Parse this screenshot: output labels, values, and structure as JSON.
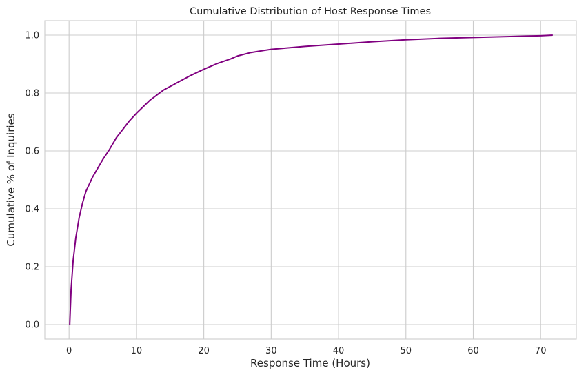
{
  "chart_data": {
    "type": "line",
    "title": "Cumulative Distribution of Host Response Times",
    "xlabel": "Response Time (Hours)",
    "ylabel": "Cumulative % of Inquiries",
    "xlim": [
      -3.6,
      75.3
    ],
    "ylim": [
      -0.05,
      1.05
    ],
    "xticks": [
      0,
      10,
      20,
      30,
      40,
      50,
      60,
      70
    ],
    "xtick_labels": [
      "0",
      "10",
      "20",
      "30",
      "40",
      "50",
      "60",
      "70"
    ],
    "yticks": [
      0.0,
      0.2,
      0.4,
      0.6,
      0.8,
      1.0
    ],
    "ytick_labels": [
      "0.0",
      "0.2",
      "0.4",
      "0.6",
      "0.8",
      "1.0"
    ],
    "grid": true,
    "line_color": "#800080",
    "series": [
      {
        "x": [
          0.1,
          0.3,
          0.6,
          1.0,
          1.5,
          2.0,
          2.5,
          3.0,
          3.5,
          4.0,
          5.0,
          6.0,
          7.0,
          8.0,
          9.0,
          10.0,
          12.0,
          14.0,
          16.0,
          18.0,
          20.0,
          22.0,
          24.0,
          25.0,
          27.0,
          30.0,
          35.0,
          40.0,
          45.0,
          50.0,
          55.0,
          60.0,
          65.0,
          70.0,
          71.8
        ],
        "y": [
          0.0,
          0.12,
          0.22,
          0.3,
          0.37,
          0.42,
          0.46,
          0.485,
          0.51,
          0.53,
          0.57,
          0.605,
          0.645,
          0.675,
          0.705,
          0.73,
          0.775,
          0.81,
          0.835,
          0.86,
          0.882,
          0.902,
          0.918,
          0.928,
          0.94,
          0.951,
          0.961,
          0.969,
          0.977,
          0.984,
          0.989,
          0.992,
          0.995,
          0.998,
          1.0
        ]
      }
    ]
  }
}
